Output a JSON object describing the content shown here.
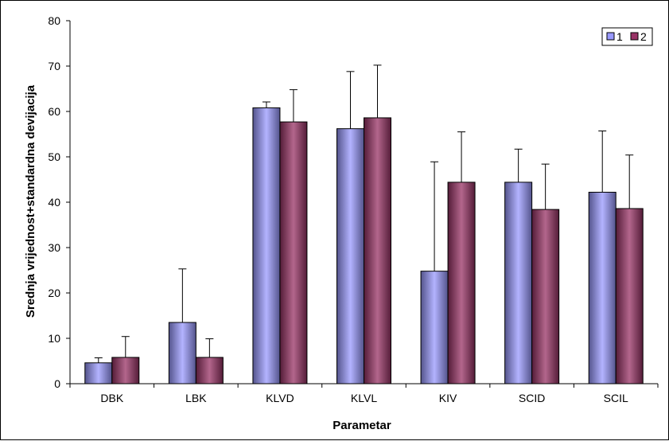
{
  "chart_data": {
    "type": "bar",
    "title": "",
    "xlabel": "Parametar",
    "ylabel": "Srednja vrijednost+standardna devijacija",
    "ylim": [
      0,
      80
    ],
    "yticks": [
      0,
      10,
      20,
      30,
      40,
      50,
      60,
      70,
      80
    ],
    "categories": [
      "DBK",
      "LBK",
      "KLVD",
      "KLVL",
      "KIV",
      "SCID",
      "SCIL"
    ],
    "series": [
      {
        "name": "1",
        "color": "#9999ff",
        "values": [
          4.6,
          13.5,
          60.8,
          56.2,
          24.8,
          44.4,
          42.2
        ],
        "error": [
          1.1,
          11.8,
          1.3,
          12.6,
          24.1,
          7.3,
          13.5
        ]
      },
      {
        "name": "2",
        "color": "#993366",
        "values": [
          5.8,
          5.8,
          57.7,
          58.6,
          44.4,
          38.4,
          38.6
        ],
        "error": [
          4.6,
          4.1,
          7.1,
          11.6,
          11.1,
          10.0,
          11.8
        ]
      }
    ],
    "grid": false,
    "legend_position": "top-right"
  }
}
